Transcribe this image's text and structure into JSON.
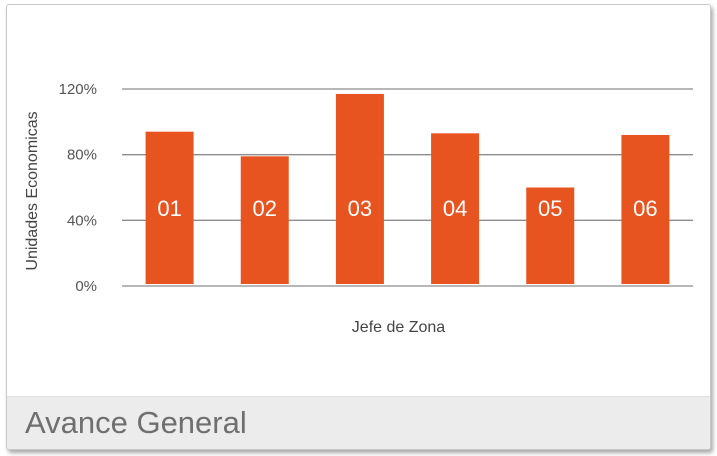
{
  "footer": {
    "title": "Avance General"
  },
  "chart_data": {
    "type": "bar",
    "xlabel": "Jefe de Zona",
    "ylabel": "Unidades Economicas",
    "categories": [
      "01",
      "02",
      "03",
      "04",
      "05",
      "06"
    ],
    "values": [
      94,
      79,
      117,
      93,
      60,
      92
    ],
    "value_unit": "%",
    "ylim": [
      0,
      120
    ],
    "yticks": [
      {
        "value": 0,
        "label": "0%"
      },
      {
        "value": 40,
        "label": "40%"
      },
      {
        "value": 80,
        "label": "80%"
      },
      {
        "value": 120,
        "label": "120%"
      }
    ],
    "grid": true,
    "colors": {
      "bar": "#e8541f",
      "grid": "#8c8c8c",
      "label": "#ffffff"
    }
  }
}
